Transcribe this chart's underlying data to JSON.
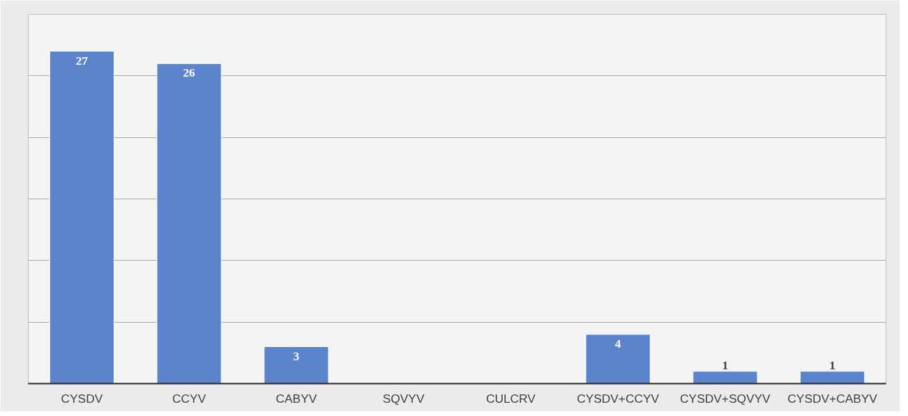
{
  "chart_data": {
    "type": "bar",
    "categories": [
      "CYSDV",
      "CCYV",
      "CABYV",
      "SQVYV",
      "CULCRV",
      "CYSDV+CCYV",
      "CYSDV+SQVYV",
      "CYSDV+CABYV"
    ],
    "values": [
      27,
      26,
      3,
      null,
      null,
      4,
      1,
      1
    ],
    "color": "#5b84cc",
    "data_labels": true,
    "ylim": [
      0,
      30
    ],
    "yticks": [
      {
        "value": 0,
        "label": null
      },
      {
        "value": 5,
        "label": null
      },
      {
        "value": 10,
        "label": null
      },
      {
        "value": 15,
        "label": null
      },
      {
        "value": 20,
        "label": null
      },
      {
        "value": 25,
        "label": null
      },
      {
        "value": 30,
        "label": null
      }
    ],
    "tick_labels": "x",
    "grid": "y"
  }
}
